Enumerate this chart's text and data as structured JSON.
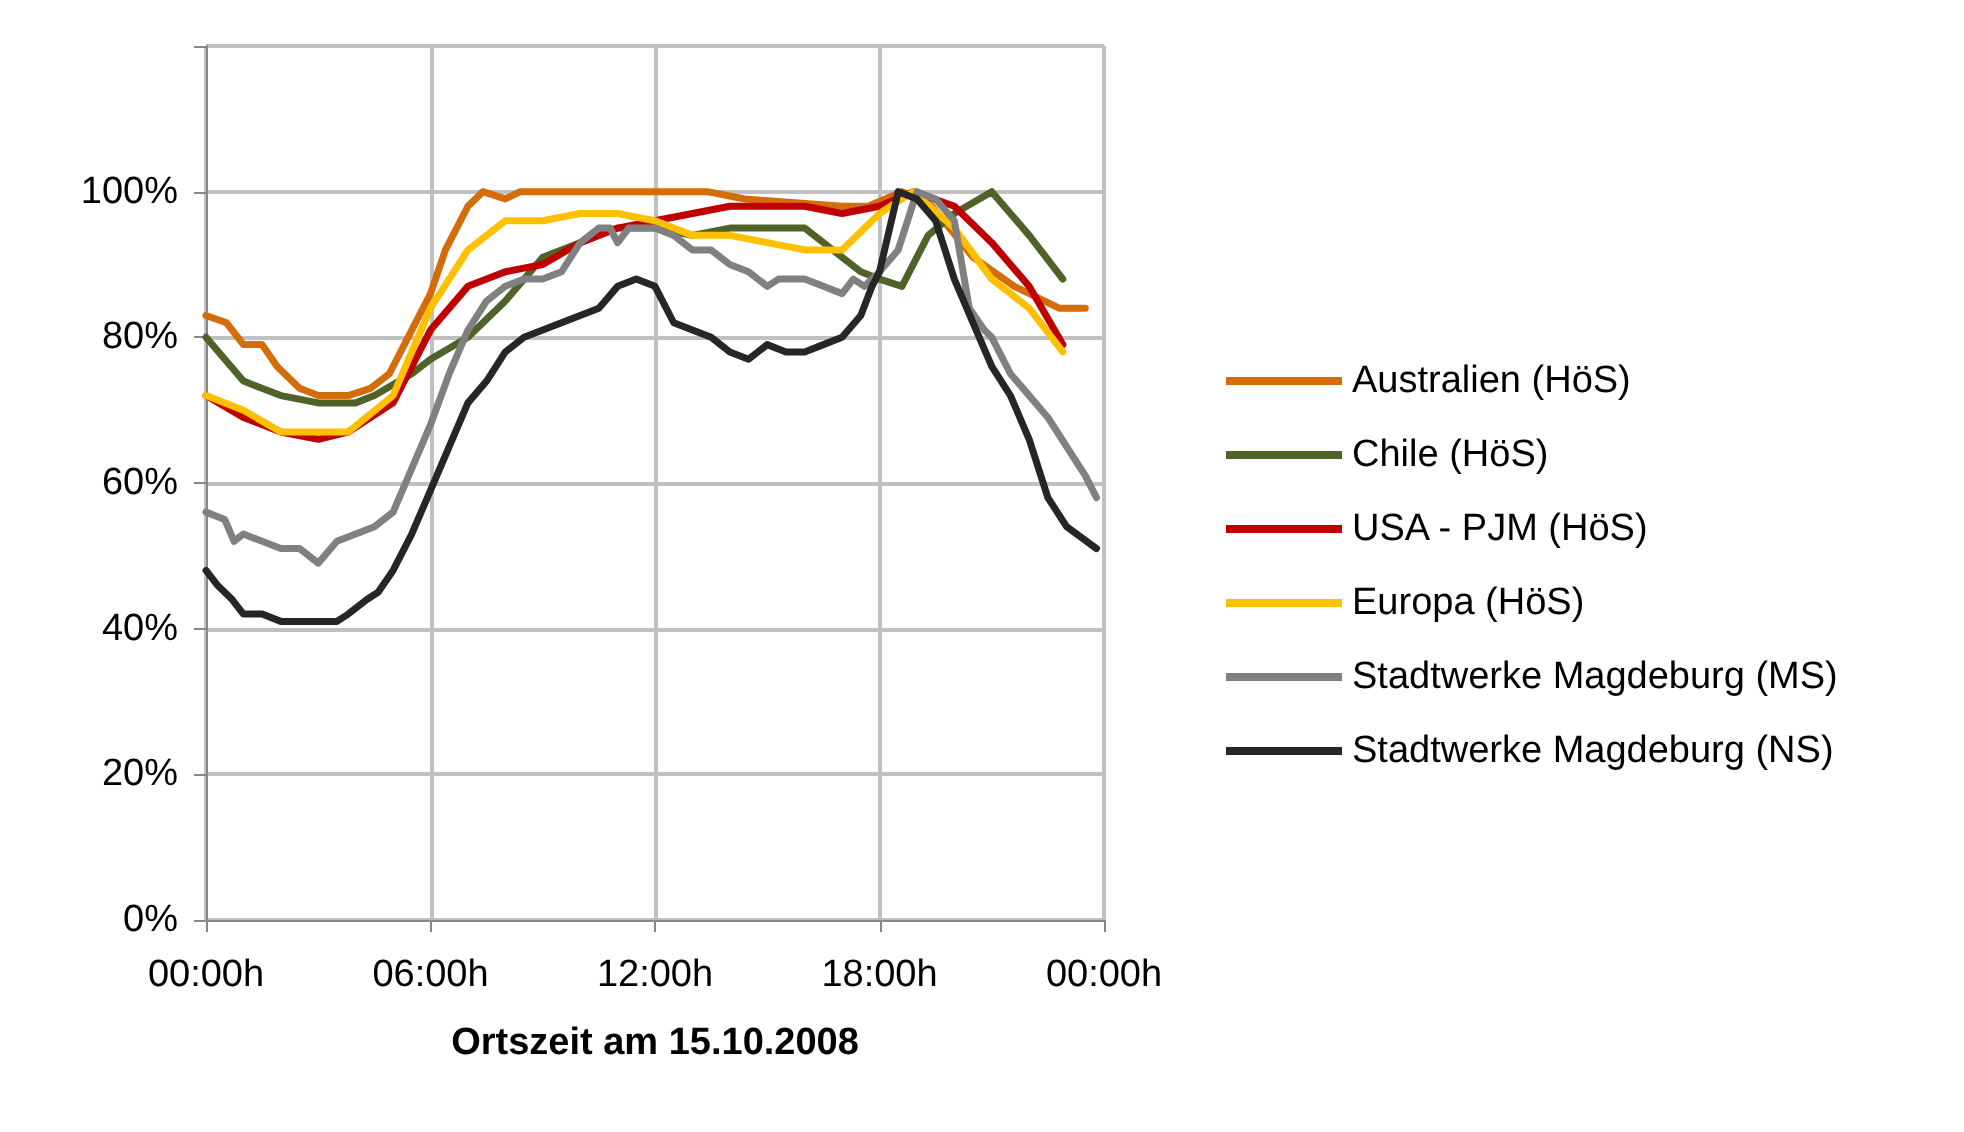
{
  "chart_data": {
    "type": "line",
    "xlabel": "Ortszeit am 15.10.2008",
    "xlim": [
      "2008-10-15T00:00",
      "2008-10-16T00:00"
    ],
    "xticks": [
      {
        "value": "2008-10-15T00:00",
        "label": "00:00h"
      },
      {
        "value": "2008-10-15T06:00",
        "label": "06:00h"
      },
      {
        "value": "2008-10-15T12:00",
        "label": "12:00h"
      },
      {
        "value": "2008-10-15T18:00",
        "label": "18:00h"
      },
      {
        "value": "2008-10-16T00:00",
        "label": "00:00h"
      }
    ],
    "ylim": [
      0,
      120
    ],
    "yticks": [
      {
        "value": 0,
        "label": "0%"
      },
      {
        "value": 20,
        "label": "20%"
      },
      {
        "value": 40,
        "label": "40%"
      },
      {
        "value": 60,
        "label": "60%"
      },
      {
        "value": 80,
        "label": "80%"
      },
      {
        "value": 100,
        "label": "100%"
      },
      {
        "value": 120,
        "label": null
      }
    ],
    "grid": true,
    "legend": "right",
    "marker": "none",
    "line_style": "solid",
    "series": [
      {
        "name": "Australien (HöS)",
        "color": "#d46c0a",
        "x": [
          "2008-10-15T00:00",
          "2008-10-15T00:33",
          "2008-10-15T01:00",
          "2008-10-15T01:30",
          "2008-10-15T01:54",
          "2008-10-15T02:30",
          "2008-10-15T03:00",
          "2008-10-15T03:48",
          "2008-10-15T04:24",
          "2008-10-15T04:54",
          "2008-10-15T05:24",
          "2008-10-15T06:00",
          "2008-10-15T06:24",
          "2008-10-15T07:00",
          "2008-10-15T07:24",
          "2008-10-15T08:00",
          "2008-10-15T08:24",
          "2008-10-15T09:00",
          "2008-10-15T09:24",
          "2008-10-15T09:54",
          "2008-10-15T10:30",
          "2008-10-15T13:24",
          "2008-10-15T14:24",
          "2008-10-15T17:00",
          "2008-10-15T17:42",
          "2008-10-15T18:36",
          "2008-10-15T19:00",
          "2008-10-15T19:24",
          "2008-10-15T20:30",
          "2008-10-15T21:36",
          "2008-10-15T22:24",
          "2008-10-15T22:48",
          "2008-10-15T23:30"
        ],
        "values": [
          83,
          82,
          79,
          79,
          76,
          73,
          72,
          72,
          73,
          75,
          80,
          86,
          92,
          98,
          100,
          99,
          100,
          100,
          100,
          100,
          100,
          100,
          99,
          98,
          98,
          100,
          99,
          98,
          91,
          87,
          85,
          84,
          84
        ]
      },
      {
        "name": "Chile (HöS)",
        "color": "#4f6228",
        "x": [
          "2008-10-15T00:00",
          "2008-10-15T01:00",
          "2008-10-15T02:00",
          "2008-10-15T03:00",
          "2008-10-15T04:00",
          "2008-10-15T04:30",
          "2008-10-15T05:30",
          "2008-10-15T06:00",
          "2008-10-15T07:00",
          "2008-10-15T08:00",
          "2008-10-15T09:00",
          "2008-10-15T10:00",
          "2008-10-15T11:00",
          "2008-10-15T12:00",
          "2008-10-15T13:00",
          "2008-10-15T14:00",
          "2008-10-15T15:00",
          "2008-10-15T16:00",
          "2008-10-15T17:00",
          "2008-10-15T17:30",
          "2008-10-15T18:00",
          "2008-10-15T18:36",
          "2008-10-15T19:18",
          "2008-10-15T20:00",
          "2008-10-15T21:00",
          "2008-10-15T22:00",
          "2008-10-15T22:54"
        ],
        "values": [
          80,
          74,
          72,
          71,
          71,
          72,
          75,
          77,
          80,
          85,
          91,
          93,
          95,
          95,
          94,
          95,
          95,
          95,
          91,
          89,
          88,
          87,
          94,
          97,
          100,
          94,
          88
        ]
      },
      {
        "name": "USA - PJM (HöS)",
        "color": "#c00000",
        "x": [
          "2008-10-15T00:00",
          "2008-10-15T01:00",
          "2008-10-15T02:00",
          "2008-10-15T03:00",
          "2008-10-15T03:48",
          "2008-10-15T05:00",
          "2008-10-15T06:00",
          "2008-10-15T07:00",
          "2008-10-15T08:00",
          "2008-10-15T09:00",
          "2008-10-15T10:00",
          "2008-10-15T11:00",
          "2008-10-15T12:00",
          "2008-10-15T13:00",
          "2008-10-15T14:00",
          "2008-10-15T15:00",
          "2008-10-15T16:00",
          "2008-10-15T17:00",
          "2008-10-15T18:00",
          "2008-10-15T18:54",
          "2008-10-15T20:00",
          "2008-10-15T21:00",
          "2008-10-15T22:00",
          "2008-10-15T22:54"
        ],
        "values": [
          72,
          69,
          67,
          66,
          67,
          71,
          81,
          87,
          89,
          90,
          93,
          95,
          96,
          97,
          98,
          98,
          98,
          97,
          98,
          100,
          98,
          93,
          87,
          79
        ]
      },
      {
        "name": "Europa (HöS)",
        "color": "#ffc000",
        "x": [
          "2008-10-15T00:00",
          "2008-10-15T01:00",
          "2008-10-15T02:00",
          "2008-10-15T03:00",
          "2008-10-15T03:48",
          "2008-10-15T05:00",
          "2008-10-15T06:00",
          "2008-10-15T07:00",
          "2008-10-15T08:00",
          "2008-10-15T09:00",
          "2008-10-15T10:00",
          "2008-10-15T11:00",
          "2008-10-15T12:00",
          "2008-10-15T13:00",
          "2008-10-15T14:00",
          "2008-10-15T15:00",
          "2008-10-15T16:00",
          "2008-10-15T17:00",
          "2008-10-15T18:00",
          "2008-10-15T18:54",
          "2008-10-15T20:00",
          "2008-10-15T21:00",
          "2008-10-15T22:00",
          "2008-10-15T22:54"
        ],
        "values": [
          72,
          70,
          67,
          67,
          67,
          72,
          84,
          92,
          96,
          96,
          97,
          97,
          96,
          94,
          94,
          93,
          92,
          92,
          97,
          100,
          95,
          88,
          84,
          78
        ]
      },
      {
        "name": "Stadtwerke Magdeburg (MS)",
        "color": "#808080",
        "x": [
          "2008-10-15T00:00",
          "2008-10-15T00:30",
          "2008-10-15T00:45",
          "2008-10-15T01:00",
          "2008-10-15T01:30",
          "2008-10-15T02:00",
          "2008-10-15T02:30",
          "2008-10-15T03:00",
          "2008-10-15T03:30",
          "2008-10-15T04:00",
          "2008-10-15T04:30",
          "2008-10-15T05:00",
          "2008-10-15T05:30",
          "2008-10-15T06:00",
          "2008-10-15T06:30",
          "2008-10-15T07:00",
          "2008-10-15T07:30",
          "2008-10-15T08:00",
          "2008-10-15T08:30",
          "2008-10-15T09:00",
          "2008-10-15T09:30",
          "2008-10-15T10:00",
          "2008-10-15T10:30",
          "2008-10-15T10:48",
          "2008-10-15T11:00",
          "2008-10-15T11:18",
          "2008-10-15T12:00",
          "2008-10-15T12:30",
          "2008-10-15T13:00",
          "2008-10-15T13:30",
          "2008-10-15T14:00",
          "2008-10-15T14:30",
          "2008-10-15T15:00",
          "2008-10-15T15:18",
          "2008-10-15T16:00",
          "2008-10-15T16:30",
          "2008-10-15T17:00",
          "2008-10-15T17:18",
          "2008-10-15T17:36",
          "2008-10-15T18:00",
          "2008-10-15T18:30",
          "2008-10-15T19:00",
          "2008-10-15T19:30",
          "2008-10-15T20:00",
          "2008-10-15T20:24",
          "2008-10-15T20:48",
          "2008-10-15T21:00",
          "2008-10-15T21:30",
          "2008-10-15T22:00",
          "2008-10-15T22:30",
          "2008-10-15T23:00",
          "2008-10-15T23:30",
          "2008-10-15T23:48"
        ],
        "values": [
          56,
          55,
          52,
          53,
          52,
          51,
          51,
          49,
          52,
          53,
          54,
          56,
          62,
          68,
          75,
          81,
          85,
          87,
          88,
          88,
          89,
          93,
          95,
          95,
          93,
          95,
          95,
          94,
          92,
          92,
          90,
          89,
          87,
          88,
          88,
          87,
          86,
          88,
          87,
          89,
          92,
          100,
          99,
          96,
          84,
          81,
          80,
          75,
          72,
          69,
          65,
          61,
          58
        ]
      },
      {
        "name": "Stadtwerke Magdeburg (NS)",
        "color": "#262626",
        "x": [
          "2008-10-15T00:00",
          "2008-10-15T00:18",
          "2008-10-15T00:42",
          "2008-10-15T01:00",
          "2008-10-15T01:30",
          "2008-10-15T02:00",
          "2008-10-15T02:30",
          "2008-10-15T03:00",
          "2008-10-15T03:30",
          "2008-10-15T03:48",
          "2008-10-15T04:18",
          "2008-10-15T04:36",
          "2008-10-15T05:00",
          "2008-10-15T05:30",
          "2008-10-15T06:00",
          "2008-10-15T06:30",
          "2008-10-15T07:00",
          "2008-10-15T07:30",
          "2008-10-15T08:00",
          "2008-10-15T08:30",
          "2008-10-15T09:00",
          "2008-10-15T09:30",
          "2008-10-15T10:00",
          "2008-10-15T10:30",
          "2008-10-15T11:00",
          "2008-10-15T11:30",
          "2008-10-15T12:00",
          "2008-10-15T12:30",
          "2008-10-15T13:00",
          "2008-10-15T13:30",
          "2008-10-15T14:00",
          "2008-10-15T14:30",
          "2008-10-15T15:00",
          "2008-10-15T15:30",
          "2008-10-15T16:00",
          "2008-10-15T16:30",
          "2008-10-15T17:00",
          "2008-10-15T17:30",
          "2008-10-15T17:48",
          "2008-10-15T18:00",
          "2008-10-15T18:30",
          "2008-10-15T19:00",
          "2008-10-15T19:30",
          "2008-10-15T20:00",
          "2008-10-15T20:30",
          "2008-10-15T21:00",
          "2008-10-15T21:30",
          "2008-10-15T22:00",
          "2008-10-15T22:30",
          "2008-10-15T23:00",
          "2008-10-15T23:48"
        ],
        "values": [
          48,
          46,
          44,
          42,
          42,
          41,
          41,
          41,
          41,
          42,
          44,
          45,
          48,
          53,
          59,
          65,
          71,
          74,
          78,
          80,
          81,
          82,
          83,
          84,
          87,
          88,
          87,
          82,
          81,
          80,
          78,
          77,
          79,
          78,
          78,
          79,
          80,
          83,
          87,
          89,
          100,
          99,
          96,
          88,
          82,
          76,
          72,
          66,
          58,
          54,
          51
        ]
      }
    ]
  }
}
